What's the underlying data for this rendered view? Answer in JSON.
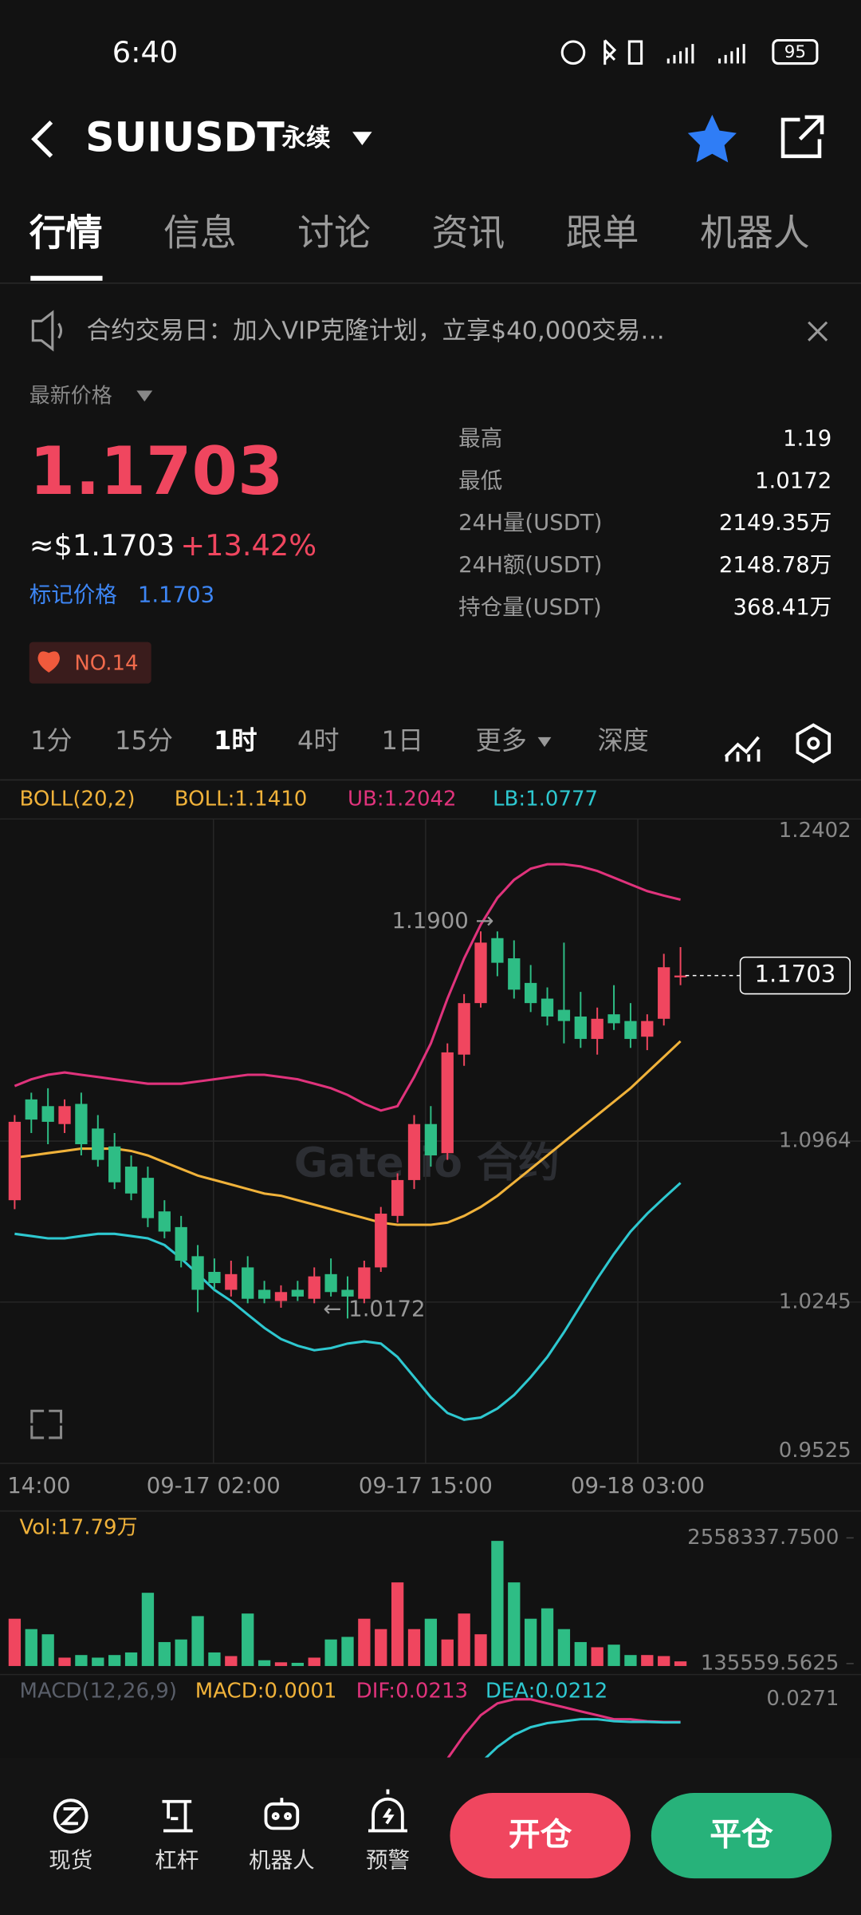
{
  "status_bar": {
    "time": "6:40",
    "battery": "95"
  },
  "header": {
    "symbol": "SUIUSDT",
    "contract": "永续"
  },
  "tabs": [
    "行情",
    "信息",
    "讨论",
    "资讯",
    "跟单",
    "机器人"
  ],
  "banner": "合约交易日：加入VIP克隆计划，立享$40,000交易…",
  "market": {
    "price_label": "最新价格",
    "price": "1.1703",
    "usd_price": "≈$1.1703",
    "change": "+13.42%",
    "mark_label": "标记价格",
    "mark_price": "1.1703",
    "rank": "NO.14",
    "stats": [
      [
        "最高",
        "1.19"
      ],
      [
        "最低",
        "1.0172"
      ],
      [
        "24H量(USDT)",
        "2149.35万"
      ],
      [
        "24H额(USDT)",
        "2148.78万"
      ],
      [
        "持仓量(USDT)",
        "368.41万"
      ]
    ]
  },
  "intervals": [
    "1分",
    "15分",
    "1时",
    "4时",
    "1日",
    "更多",
    "深度"
  ],
  "kline": {
    "legend": [
      "BOLL(20,2)",
      "BOLL:1.1410",
      "UB:1.2042",
      "LB:1.0777"
    ],
    "watermark": "Gate.io 合约",
    "ylim": [
      0.9525,
      1.2402
    ],
    "yticks": [
      1.2402,
      1.0964,
      1.0245,
      0.9525
    ],
    "xlabels": [
      "14:00",
      "09-17 02:00",
      "09-17 15:00",
      "09-18 03:00"
    ],
    "high_note": "1.1900 →",
    "low_note": "← 1.0172",
    "last_price": 1.1703,
    "candles": [
      [
        1.07,
        1.108,
        1.066,
        1.105
      ],
      [
        1.115,
        1.118,
        1.1,
        1.106
      ],
      [
        1.112,
        1.12,
        1.095,
        1.105
      ],
      [
        1.104,
        1.115,
        1.1,
        1.112
      ],
      [
        1.113,
        1.118,
        1.09,
        1.095
      ],
      [
        1.102,
        1.108,
        1.085,
        1.088
      ],
      [
        1.094,
        1.1,
        1.075,
        1.078
      ],
      [
        1.085,
        1.09,
        1.07,
        1.073
      ],
      [
        1.08,
        1.085,
        1.058,
        1.062
      ],
      [
        1.065,
        1.07,
        1.053,
        1.056
      ],
      [
        1.058,
        1.063,
        1.04,
        1.043
      ],
      [
        1.045,
        1.05,
        1.02,
        1.03
      ],
      [
        1.038,
        1.044,
        1.03,
        1.033
      ],
      [
        1.03,
        1.043,
        1.027,
        1.037
      ],
      [
        1.04,
        1.045,
        1.024,
        1.026
      ],
      [
        1.03,
        1.034,
        1.024,
        1.026
      ],
      [
        1.025,
        1.032,
        1.022,
        1.029
      ],
      [
        1.03,
        1.034,
        1.025,
        1.027
      ],
      [
        1.026,
        1.04,
        1.024,
        1.036
      ],
      [
        1.037,
        1.044,
        1.027,
        1.029
      ],
      [
        1.03,
        1.036,
        1.0172,
        1.027
      ],
      [
        1.026,
        1.043,
        1.024,
        1.04
      ],
      [
        1.04,
        1.067,
        1.038,
        1.064
      ],
      [
        1.063,
        1.082,
        1.06,
        1.079
      ],
      [
        1.079,
        1.108,
        1.075,
        1.104
      ],
      [
        1.104,
        1.112,
        1.085,
        1.09
      ],
      [
        1.091,
        1.14,
        1.088,
        1.136
      ],
      [
        1.135,
        1.162,
        1.13,
        1.158
      ],
      [
        1.158,
        1.19,
        1.156,
        1.185
      ],
      [
        1.187,
        1.19,
        1.17,
        1.176
      ],
      [
        1.178,
        1.186,
        1.16,
        1.164
      ],
      [
        1.167,
        1.175,
        1.154,
        1.158
      ],
      [
        1.16,
        1.165,
        1.148,
        1.152
      ],
      [
        1.155,
        1.185,
        1.14,
        1.15
      ],
      [
        1.152,
        1.163,
        1.138,
        1.142
      ],
      [
        1.142,
        1.156,
        1.135,
        1.151
      ],
      [
        1.153,
        1.166,
        1.146,
        1.149
      ],
      [
        1.15,
        1.158,
        1.138,
        1.142
      ],
      [
        1.143,
        1.153,
        1.137,
        1.15
      ],
      [
        1.151,
        1.18,
        1.148,
        1.174
      ],
      [
        1.17,
        1.183,
        1.166,
        1.1703
      ]
    ],
    "boll_mid": [
      1.089,
      1.09,
      1.091,
      1.092,
      1.093,
      1.093,
      1.093,
      1.092,
      1.09,
      1.087,
      1.084,
      1.081,
      1.079,
      1.077,
      1.075,
      1.073,
      1.072,
      1.07,
      1.068,
      1.066,
      1.064,
      1.062,
      1.06,
      1.059,
      1.059,
      1.059,
      1.06,
      1.063,
      1.067,
      1.072,
      1.078,
      1.084,
      1.09,
      1.096,
      1.102,
      1.108,
      1.114,
      1.12,
      1.127,
      1.134,
      1.141
    ],
    "boll_ub": [
      1.121,
      1.124,
      1.126,
      1.127,
      1.126,
      1.125,
      1.124,
      1.123,
      1.122,
      1.122,
      1.122,
      1.123,
      1.124,
      1.125,
      1.126,
      1.126,
      1.125,
      1.124,
      1.122,
      1.12,
      1.117,
      1.113,
      1.11,
      1.112,
      1.125,
      1.14,
      1.16,
      1.178,
      1.193,
      1.205,
      1.213,
      1.218,
      1.22,
      1.22,
      1.219,
      1.217,
      1.214,
      1.211,
      1.208,
      1.206,
      1.2042
    ],
    "boll_lb": [
      1.055,
      1.054,
      1.053,
      1.053,
      1.054,
      1.055,
      1.055,
      1.054,
      1.053,
      1.05,
      1.044,
      1.037,
      1.03,
      1.025,
      1.019,
      1.013,
      1.008,
      1.005,
      1.003,
      1.004,
      1.006,
      1.007,
      1.006,
      1.0,
      0.991,
      0.982,
      0.975,
      0.972,
      0.973,
      0.977,
      0.983,
      0.991,
      1.0,
      1.011,
      1.023,
      1.035,
      1.046,
      1.056,
      1.064,
      1.071,
      1.0777
    ]
  },
  "volume": {
    "label": "Vol:17.79万",
    "ylim": [
      135559.5625,
      2558337.75
    ],
    "yticks": [
      {
        "value": 2558337.75,
        "label": "2558337.7500"
      },
      135559.5625
    ],
    "values": [
      1000000,
      800000,
      700000,
      250000,
      300000,
      250000,
      300000,
      350000,
      1500000,
      550000,
      600000,
      1050000,
      350000,
      280000,
      1100000,
      200000,
      160000,
      150000,
      250000,
      600000,
      650000,
      1000000,
      800000,
      1700000,
      800000,
      1000000,
      600000,
      1100000,
      700000,
      2500000,
      1700000,
      1000000,
      1200000,
      800000,
      550000,
      450000,
      500000,
      300000,
      300000,
      280000,
      177900
    ]
  },
  "macd": {
    "legend": [
      "MACD(12,26,9)",
      "MACD:0.0001",
      "DIF:0.0213",
      "DEA:0.0212"
    ],
    "ylim": [
      0,
      0.0271
    ],
    "yticks": [
      0.0271
    ],
    "dif": [
      null,
      null,
      null,
      null,
      null,
      null,
      null,
      null,
      null,
      null,
      null,
      null,
      null,
      null,
      null,
      null,
      null,
      null,
      null,
      null,
      null,
      null,
      null,
      null,
      null,
      0.005,
      0.012,
      0.018,
      0.023,
      0.026,
      0.027,
      0.027,
      0.026,
      0.025,
      0.024,
      0.023,
      0.022,
      0.022,
      0.0215,
      0.0213,
      0.0213
    ],
    "dea": [
      null,
      null,
      null,
      null,
      null,
      null,
      null,
      null,
      null,
      null,
      null,
      null,
      null,
      null,
      null,
      null,
      null,
      null,
      null,
      null,
      null,
      null,
      null,
      null,
      null,
      0.0,
      0.003,
      0.007,
      0.011,
      0.015,
      0.018,
      0.02,
      0.021,
      0.0215,
      0.022,
      0.022,
      0.0215,
      0.0213,
      0.0213,
      0.0212,
      0.0212
    ]
  },
  "bottom_nav": [
    "现货",
    "杠杆",
    "机器人",
    "预警"
  ],
  "buttons": [
    "开仓",
    "平仓"
  ]
}
